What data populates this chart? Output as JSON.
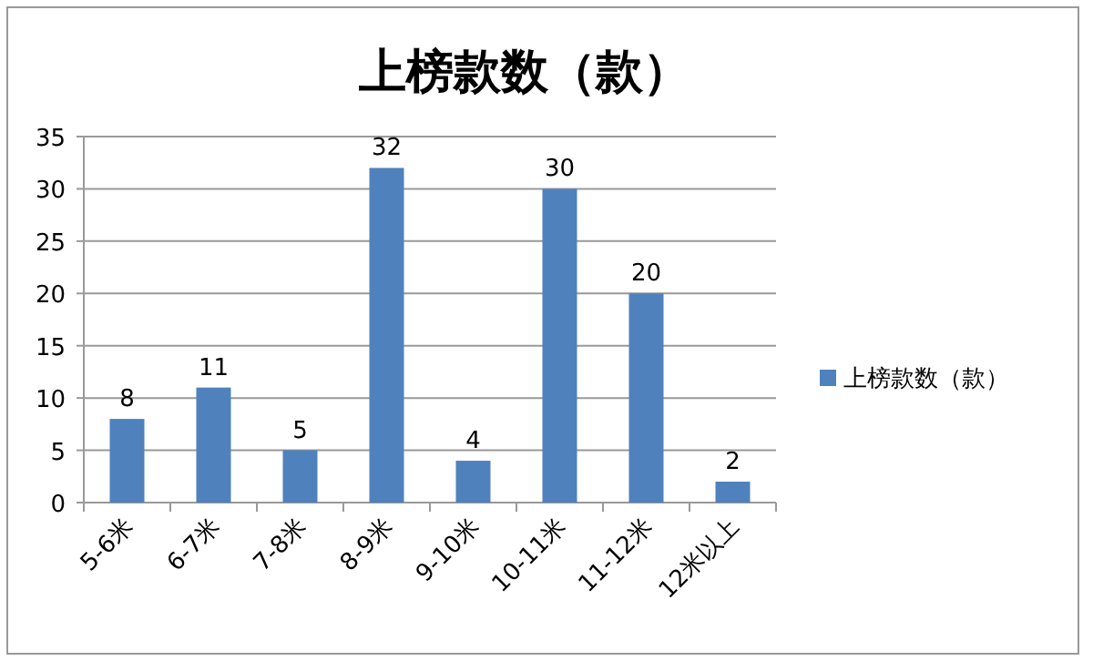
{
  "chart_data": {
    "type": "bar",
    "title": "上榜款数（款）",
    "categories": [
      "5-6米",
      "6-7米",
      "7-8米",
      "8-9米",
      "9-10米",
      "10-11米",
      "11-12米",
      "12米以上"
    ],
    "series": [
      {
        "name": "上榜款数（款）",
        "color": "#4f81bd",
        "values": [
          8,
          11,
          5,
          32,
          4,
          30,
          20,
          2
        ]
      }
    ],
    "ylim": [
      0,
      35
    ],
    "yticks": [
      0,
      5,
      10,
      15,
      20,
      25,
      30,
      35
    ],
    "grid": "y",
    "legend": "right",
    "data_labels": true
  }
}
